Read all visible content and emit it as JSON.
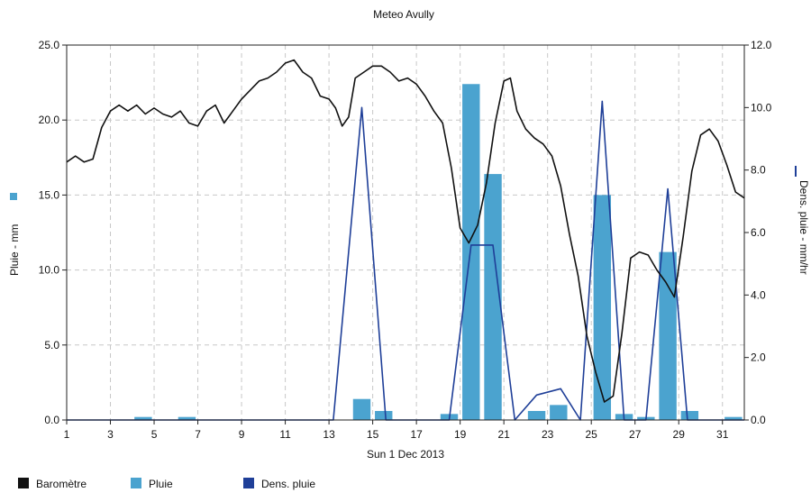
{
  "chart_data": {
    "type": "bar",
    "title": "Meteo  Avully",
    "xlabel": "Sun 1 Dec 2013",
    "ylabel_left": "Pluie - mm",
    "ylabel_right": "Dens. pluie - mm/hr",
    "x_range": [
      1,
      32
    ],
    "x_ticks": [
      "1",
      "3",
      "5",
      "7",
      "9",
      "11",
      "13",
      "15",
      "17",
      "19",
      "21",
      "23",
      "25",
      "27",
      "29",
      "31"
    ],
    "y_left_range": [
      0,
      25
    ],
    "y_left_ticks": [
      "0.0",
      "5.0",
      "10.0",
      "15.0",
      "20.0",
      "25.0"
    ],
    "y_right_range": [
      0,
      12
    ],
    "y_right_ticks": [
      "0.0",
      "2.0",
      "4.0",
      "6.0",
      "8.0",
      "10.0",
      "12.0"
    ],
    "grid": true,
    "legend_position": "bottom",
    "legend": [
      {
        "label": "Baromètre",
        "color": "#111111"
      },
      {
        "label": "Pluie",
        "color": "#4ba3cf"
      },
      {
        "label": "Dens. pluie",
        "color": "#1f3f98"
      }
    ],
    "series": [
      {
        "name": "Pluie",
        "kind": "bar",
        "color": "#4ba3cf",
        "axis": "left",
        "days": [
          4.5,
          6.5,
          14.5,
          15.5,
          18.5,
          19.5,
          20.5,
          22.5,
          23.5,
          25.5,
          26.5,
          27.5,
          28.5,
          29.5,
          31.5
        ],
        "values": [
          0.2,
          0.2,
          1.4,
          0.6,
          0.4,
          22.4,
          16.4,
          0.6,
          1.0,
          15.0,
          0.4,
          0.2,
          11.2,
          0.6,
          0.2
        ]
      },
      {
        "name": "Dens. pluie",
        "kind": "line",
        "color": "#1f3f98",
        "axis": "right",
        "x": [
          1,
          13.2,
          14.5,
          15.6,
          18.5,
          19.5,
          20.5,
          21.5,
          22.5,
          23.6,
          24.5,
          25.5,
          26.5,
          27.5,
          28.5,
          29.4,
          32
        ],
        "y": [
          0,
          0,
          10.0,
          0,
          0,
          5.6,
          5.6,
          0,
          0.8,
          1.0,
          0,
          10.2,
          0,
          0,
          7.4,
          0,
          0
        ]
      },
      {
        "name": "Baromètre",
        "kind": "line",
        "color": "#111111",
        "axis": "left",
        "x": [
          1,
          1.4,
          1.8,
          2.2,
          2.6,
          3,
          3.4,
          3.8,
          4.2,
          4.6,
          5,
          5.4,
          5.8,
          6.2,
          6.6,
          7,
          7.4,
          7.8,
          8.2,
          8.6,
          9,
          9.4,
          9.8,
          10.2,
          10.6,
          11,
          11.4,
          11.8,
          12.2,
          12.6,
          13,
          13.3,
          13.6,
          13.9,
          14.2,
          14.6,
          15,
          15.4,
          15.8,
          16.2,
          16.6,
          17,
          17.4,
          17.8,
          18.2,
          18.6,
          19,
          19.4,
          19.8,
          20.2,
          20.6,
          21,
          21.3,
          21.6,
          22,
          22.4,
          22.8,
          23.2,
          23.6,
          24,
          24.4,
          24.8,
          25.2,
          25.6,
          26,
          26.4,
          26.8,
          27.2,
          27.6,
          28,
          28.4,
          28.8,
          29.2,
          29.6,
          30,
          30.4,
          30.8,
          31.2,
          31.6,
          32
        ],
        "y": [
          17.2,
          17.6,
          17.2,
          17.4,
          19.5,
          20.6,
          21.0,
          20.6,
          21.0,
          20.4,
          20.8,
          20.4,
          20.2,
          20.6,
          19.8,
          19.6,
          20.6,
          21.0,
          19.8,
          20.6,
          21.4,
          22.0,
          22.6,
          22.8,
          23.2,
          23.8,
          24.0,
          23.2,
          22.8,
          21.6,
          21.4,
          20.8,
          19.6,
          20.2,
          22.8,
          23.2,
          23.6,
          23.6,
          23.2,
          22.6,
          22.8,
          22.4,
          21.6,
          20.6,
          19.8,
          16.8,
          12.8,
          11.8,
          13.0,
          15.8,
          19.8,
          22.6,
          22.8,
          20.6,
          19.4,
          18.8,
          18.4,
          17.6,
          15.6,
          12.4,
          9.6,
          5.6,
          3.2,
          1.2,
          1.6,
          5.8,
          10.8,
          11.2,
          11.0,
          10.0,
          9.2,
          8.2,
          12.2,
          16.6,
          19.0,
          19.4,
          18.6,
          17.0,
          15.2,
          14.8
        ]
      }
    ]
  }
}
